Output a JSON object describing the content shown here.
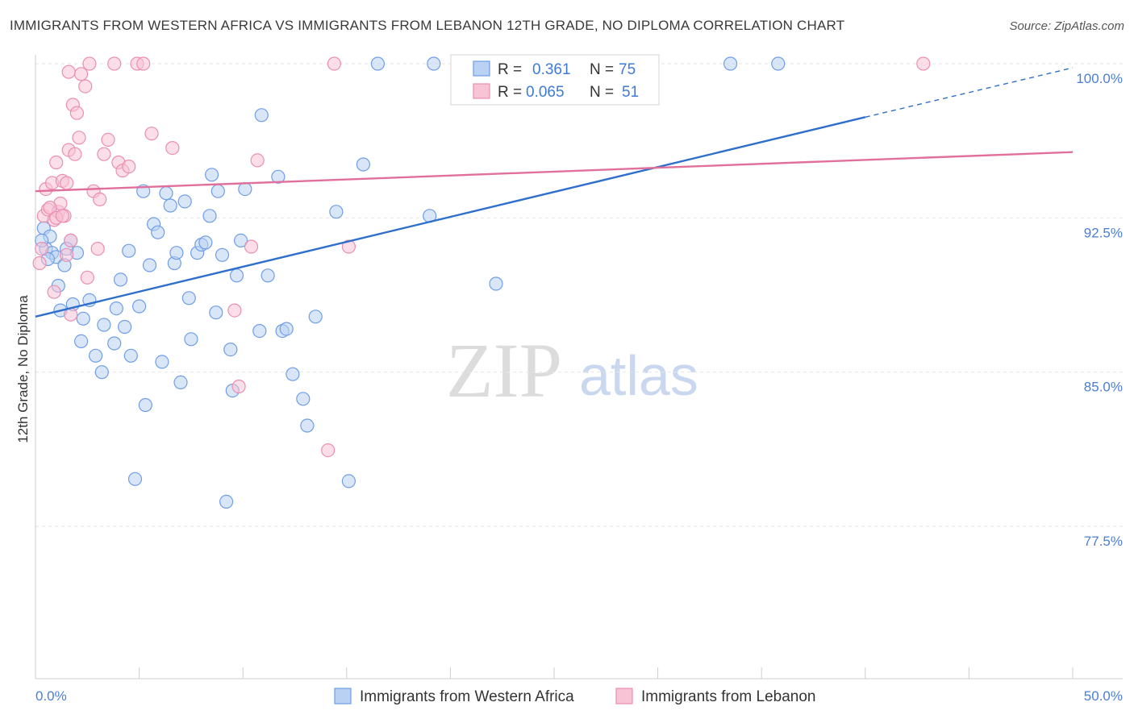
{
  "header": {
    "title": "IMMIGRANTS FROM WESTERN AFRICA VS IMMIGRANTS FROM LEBANON 12TH GRADE, NO DIPLOMA CORRELATION CHART",
    "source": "Source: ZipAtlas.com"
  },
  "watermark": {
    "zip": "ZIP",
    "atlas": "atlas"
  },
  "chart_data": {
    "type": "scatter",
    "title": "IMMIGRANTS FROM WESTERN AFRICA VS IMMIGRANTS FROM LEBANON 12TH GRADE, NO DIPLOMA CORRELATION CHART",
    "xlabel": "",
    "ylabel": "12th Grade, No Diploma",
    "xlim": [
      0,
      50
    ],
    "ylim": [
      70,
      101
    ],
    "x_tick_labels": {
      "min": "0.0%",
      "max": "50.0%"
    },
    "y_ticks": [
      {
        "value": 100,
        "label": "100.0%"
      },
      {
        "value": 92.5,
        "label": "92.5%"
      },
      {
        "value": 85,
        "label": "85.0%"
      },
      {
        "value": 77.5,
        "label": "77.5%"
      }
    ],
    "legend": {
      "r_label": "R =",
      "n_label": "N =",
      "entries": [
        {
          "r": "0.361",
          "n": "75"
        },
        {
          "r": "0.065",
          "n": "51"
        }
      ]
    },
    "series": [
      {
        "name": "Immigrants from Western Africa",
        "color": "#6f9ee6",
        "fill": "#b9d1f3",
        "line_color": "#2f6fcc",
        "trend": {
          "x0": 0,
          "y0": 87.7,
          "x1": 40,
          "y1": 97.4,
          "dash_to_x": 50,
          "dash_to_y": 99.8
        },
        "points": [
          [
            0.4,
            92.0
          ],
          [
            0.5,
            91.0
          ],
          [
            0.7,
            91.6
          ],
          [
            0.8,
            90.8
          ],
          [
            1.0,
            90.6
          ],
          [
            1.1,
            89.2
          ],
          [
            1.2,
            88.0
          ],
          [
            1.4,
            90.2
          ],
          [
            1.7,
            91.4
          ],
          [
            1.8,
            88.3
          ],
          [
            2.0,
            90.8
          ],
          [
            2.3,
            87.6
          ],
          [
            2.6,
            88.5
          ],
          [
            2.9,
            85.8
          ],
          [
            3.2,
            85.0
          ],
          [
            3.3,
            87.3
          ],
          [
            3.8,
            86.4
          ],
          [
            3.9,
            88.1
          ],
          [
            4.1,
            89.5
          ],
          [
            4.3,
            87.2
          ],
          [
            4.5,
            90.9
          ],
          [
            4.6,
            85.8
          ],
          [
            4.8,
            79.8
          ],
          [
            5.0,
            88.2
          ],
          [
            5.2,
            93.8
          ],
          [
            5.3,
            83.4
          ],
          [
            5.5,
            90.2
          ],
          [
            5.7,
            92.2
          ],
          [
            5.9,
            91.8
          ],
          [
            6.1,
            85.5
          ],
          [
            6.3,
            93.7
          ],
          [
            6.5,
            93.1
          ],
          [
            6.7,
            90.3
          ],
          [
            6.8,
            90.8
          ],
          [
            7.0,
            84.5
          ],
          [
            7.2,
            93.3
          ],
          [
            7.4,
            88.6
          ],
          [
            7.5,
            86.6
          ],
          [
            7.8,
            90.8
          ],
          [
            8.0,
            91.2
          ],
          [
            8.2,
            91.3
          ],
          [
            8.4,
            92.6
          ],
          [
            8.5,
            94.6
          ],
          [
            8.7,
            87.9
          ],
          [
            8.8,
            93.8
          ],
          [
            9.0,
            90.7
          ],
          [
            9.2,
            78.7
          ],
          [
            9.4,
            86.1
          ],
          [
            9.5,
            84.1
          ],
          [
            9.7,
            89.7
          ],
          [
            9.9,
            91.4
          ],
          [
            10.1,
            93.9
          ],
          [
            10.8,
            87.0
          ],
          [
            10.9,
            97.5
          ],
          [
            11.2,
            89.7
          ],
          [
            11.7,
            94.5
          ],
          [
            11.9,
            87.0
          ],
          [
            12.1,
            87.1
          ],
          [
            12.4,
            84.9
          ],
          [
            12.9,
            83.7
          ],
          [
            13.1,
            82.4
          ],
          [
            13.5,
            87.7
          ],
          [
            14.5,
            92.8
          ],
          [
            15.1,
            79.7
          ],
          [
            15.8,
            95.1
          ],
          [
            16.5,
            100.0
          ],
          [
            19.0,
            92.6
          ],
          [
            19.2,
            100.0
          ],
          [
            22.2,
            89.3
          ],
          [
            33.5,
            100.0
          ],
          [
            35.8,
            100.0
          ],
          [
            0.3,
            91.4
          ],
          [
            0.6,
            90.5
          ],
          [
            1.5,
            91.0
          ],
          [
            2.2,
            86.5
          ]
        ]
      },
      {
        "name": "Immigrants from Lebanon",
        "color": "#ea8fb0",
        "fill": "#f7c3d5",
        "line_color": "#e0709b",
        "trend": {
          "x0": 0,
          "y0": 93.8,
          "x1": 50,
          "y1": 95.7
        },
        "points": [
          [
            0.3,
            91.0
          ],
          [
            0.4,
            92.6
          ],
          [
            0.5,
            93.9
          ],
          [
            0.6,
            92.9
          ],
          [
            0.8,
            94.2
          ],
          [
            0.9,
            92.4
          ],
          [
            1.0,
            95.2
          ],
          [
            1.1,
            92.8
          ],
          [
            1.2,
            93.2
          ],
          [
            1.3,
            94.3
          ],
          [
            1.4,
            92.6
          ],
          [
            1.5,
            94.2
          ],
          [
            1.6,
            95.8
          ],
          [
            1.7,
            91.4
          ],
          [
            1.8,
            98.0
          ],
          [
            1.9,
            95.6
          ],
          [
            2.0,
            97.6
          ],
          [
            2.1,
            96.4
          ],
          [
            2.2,
            99.5
          ],
          [
            2.4,
            98.9
          ],
          [
            2.6,
            100.0
          ],
          [
            2.8,
            93.8
          ],
          [
            3.0,
            91.0
          ],
          [
            3.3,
            95.6
          ],
          [
            3.5,
            96.3
          ],
          [
            3.8,
            100.0
          ],
          [
            4.0,
            95.2
          ],
          [
            4.2,
            94.8
          ],
          [
            4.5,
            95.0
          ],
          [
            4.9,
            100.0
          ],
          [
            5.2,
            100.0
          ],
          [
            5.6,
            96.6
          ],
          [
            6.6,
            95.9
          ],
          [
            9.6,
            88.0
          ],
          [
            9.8,
            84.3
          ],
          [
            10.4,
            91.1
          ],
          [
            10.7,
            95.3
          ],
          [
            14.1,
            81.2
          ],
          [
            14.4,
            100.0
          ],
          [
            15.1,
            91.1
          ],
          [
            42.8,
            100.0
          ],
          [
            0.2,
            90.3
          ],
          [
            0.7,
            93.0
          ],
          [
            1.0,
            92.5
          ],
          [
            1.5,
            90.7
          ],
          [
            1.3,
            92.6
          ],
          [
            1.6,
            99.6
          ],
          [
            2.5,
            89.6
          ],
          [
            0.9,
            88.9
          ],
          [
            1.7,
            87.8
          ],
          [
            3.1,
            93.4
          ]
        ]
      }
    ]
  }
}
